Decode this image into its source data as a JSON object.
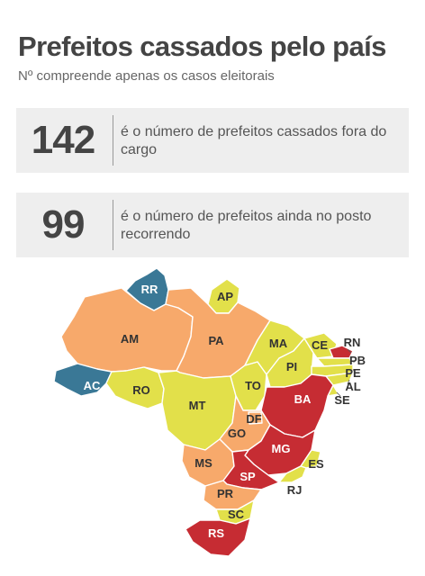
{
  "header": {
    "title": "Prefeitos cassados pelo país",
    "subtitle": "Nº compreende apenas os casos eleitorais"
  },
  "stats": [
    {
      "number": "142",
      "text": "é o número de prefeitos cassados fora do cargo"
    },
    {
      "number": "99",
      "text": "é o número de prefeitos ainda no posto recorrendo"
    }
  ],
  "colors": {
    "blue": "#3a7896",
    "orange": "#f7a96b",
    "yellow": "#e2e04a",
    "red": "#c62c33"
  },
  "map": {
    "states": {
      "RR": {
        "label": "RR",
        "color": "blue"
      },
      "AP": {
        "label": "AP",
        "color": "yellow"
      },
      "AM": {
        "label": "AM",
        "color": "orange"
      },
      "PA": {
        "label": "PA",
        "color": "orange"
      },
      "AC": {
        "label": "AC",
        "color": "blue"
      },
      "RO": {
        "label": "RO",
        "color": "yellow"
      },
      "MT": {
        "label": "MT",
        "color": "yellow"
      },
      "TO": {
        "label": "TO",
        "color": "yellow"
      },
      "MA": {
        "label": "MA",
        "color": "yellow"
      },
      "PI": {
        "label": "PI",
        "color": "yellow"
      },
      "CE": {
        "label": "CE",
        "color": "yellow"
      },
      "RN": {
        "label": "RN",
        "color": "red"
      },
      "PB": {
        "label": "PB",
        "color": "yellow"
      },
      "PE": {
        "label": "PE",
        "color": "yellow"
      },
      "AL": {
        "label": "AL",
        "color": "yellow"
      },
      "SE": {
        "label": "SE",
        "color": "yellow"
      },
      "BA": {
        "label": "BA",
        "color": "red"
      },
      "DF": {
        "label": "DF",
        "color": "orange"
      },
      "GO": {
        "label": "GO",
        "color": "orange"
      },
      "MG": {
        "label": "MG",
        "color": "red"
      },
      "ES": {
        "label": "ES",
        "color": "yellow"
      },
      "RJ": {
        "label": "RJ",
        "color": "yellow"
      },
      "MS": {
        "label": "MS",
        "color": "orange"
      },
      "SP": {
        "label": "SP",
        "color": "red"
      },
      "PR": {
        "label": "PR",
        "color": "orange"
      },
      "SC": {
        "label": "SC",
        "color": "yellow"
      },
      "RS": {
        "label": "RS",
        "color": "red"
      }
    }
  }
}
